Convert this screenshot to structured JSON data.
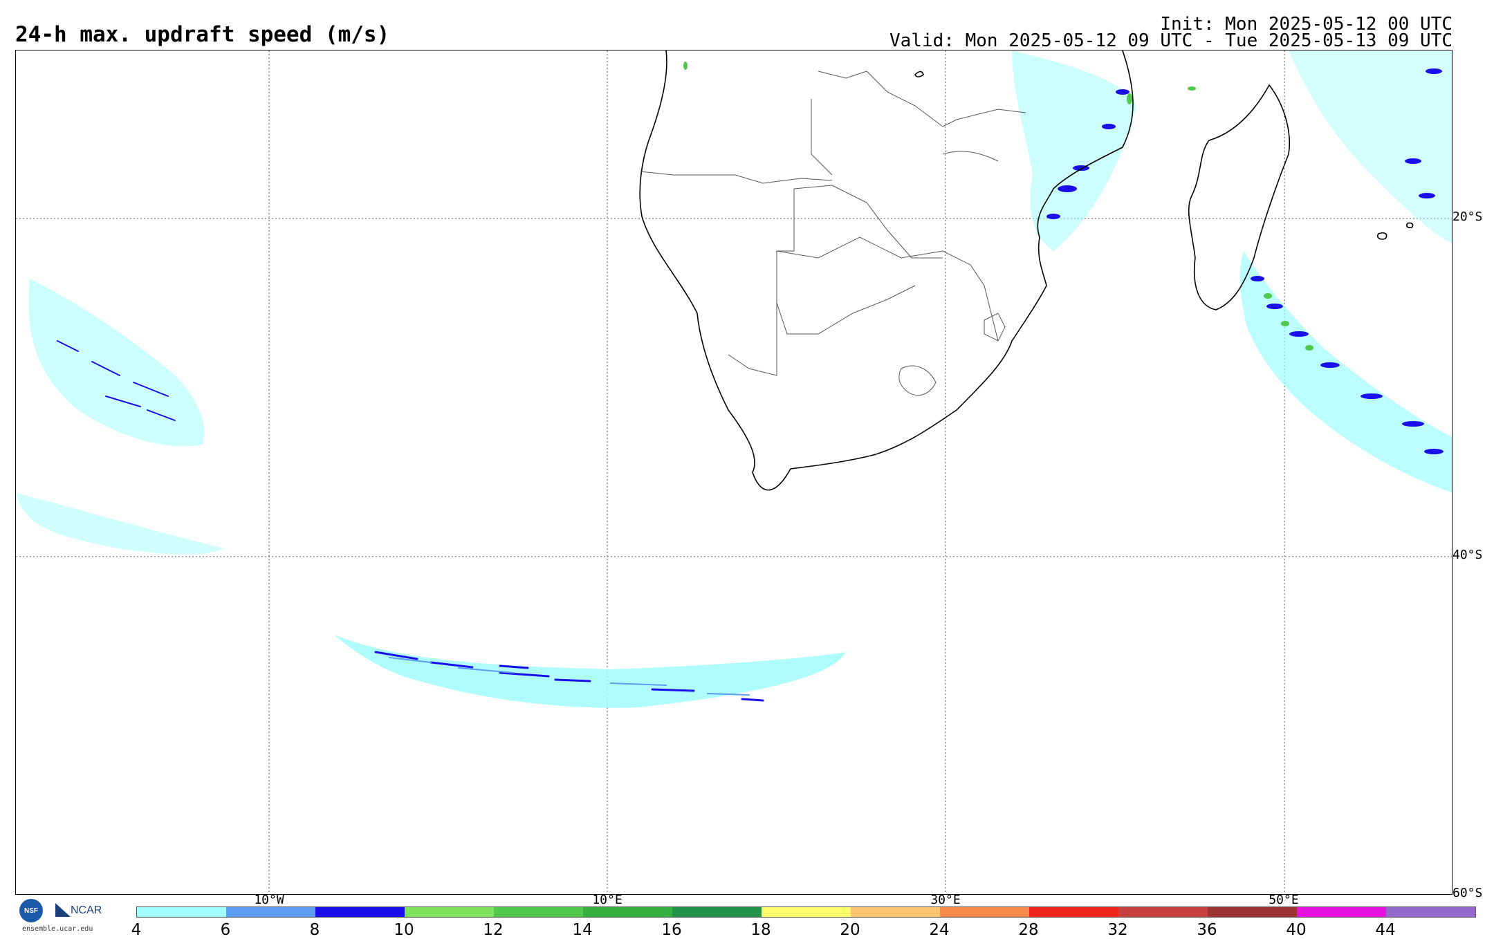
{
  "header": {
    "title": "24-h max. updraft speed (m/s)",
    "init": "Init: Mon 2025-05-12 00 UTC",
    "valid": "Valid: Mon 2025-05-12 09 UTC - Tue 2025-05-13 09 UTC"
  },
  "map": {
    "lat_labels": [
      "20°S",
      "40°S",
      "60°S"
    ],
    "lon_labels": [
      "10°W",
      "10°E",
      "30°E",
      "50°E"
    ]
  },
  "logos": {
    "org": "NCAR",
    "nsf": "NSF",
    "site": "ensemble.ucar.edu"
  },
  "colorbar": {
    "labels": [
      "4",
      "6",
      "8",
      "10",
      "12",
      "14",
      "16",
      "18",
      "20",
      "24",
      "28",
      "32",
      "36",
      "40",
      "44"
    ],
    "colors": [
      "#a0fdfc",
      "#5a9cf2",
      "#1a0fe8",
      "#7de35e",
      "#52c84a",
      "#34b03e",
      "#239447",
      "#fdfc6a",
      "#fbc46e",
      "#f8894c",
      "#f2261c",
      "#c94040",
      "#9c3434",
      "#e812e0",
      "#9469cc"
    ]
  }
}
